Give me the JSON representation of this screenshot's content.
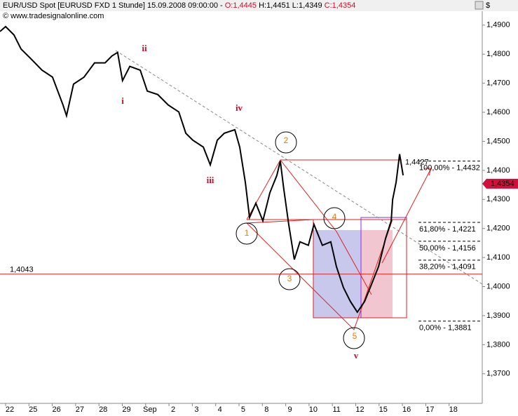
{
  "chart_data": {
    "type": "line",
    "title": "EUR/USD Spot [EURUSD FXD  1 Stunde] 15.09.2008 09:00:00 -",
    "ohlc": {
      "open": "O:1,4445",
      "high": "H:1,4451",
      "low": "L:1,4349",
      "close": "C:1,4354"
    },
    "source": "© www.tradesignalonline.com",
    "currency": "$",
    "xlim": [
      -0.42,
      20.24
    ],
    "ylim": [
      1.3598,
      1.4943
    ],
    "xticks": [
      {
        "value": 0,
        "label": "22"
      },
      {
        "value": 1,
        "label": "25"
      },
      {
        "value": 2,
        "label": "26"
      },
      {
        "value": 3,
        "label": "27"
      },
      {
        "value": 4,
        "label": "28"
      },
      {
        "value": 5,
        "label": "29"
      },
      {
        "value": 6,
        "label": "Sep"
      },
      {
        "value": 7,
        "label": "2"
      },
      {
        "value": 8,
        "label": "3"
      },
      {
        "value": 9,
        "label": "4"
      },
      {
        "value": 10,
        "label": "5"
      },
      {
        "value": 11,
        "label": "8"
      },
      {
        "value": 12,
        "label": "9"
      },
      {
        "value": 13,
        "label": "10"
      },
      {
        "value": 14,
        "label": "11"
      },
      {
        "value": 15,
        "label": "12"
      },
      {
        "value": 16,
        "label": "15"
      },
      {
        "value": 17,
        "label": "16"
      },
      {
        "value": 18,
        "label": "17"
      },
      {
        "value": 19,
        "label": "18"
      }
    ],
    "yticks": [
      {
        "value": 1.37,
        "label": "1,3700"
      },
      {
        "value": 1.38,
        "label": "1,3800"
      },
      {
        "value": 1.39,
        "label": "1,3900"
      },
      {
        "value": 1.4,
        "label": "1,4000"
      },
      {
        "value": 1.41,
        "label": "1,4100"
      },
      {
        "value": 1.42,
        "label": "1,4200"
      },
      {
        "value": 1.43,
        "label": "1,4300"
      },
      {
        "value": 1.44,
        "label": "1,4400"
      },
      {
        "value": 1.45,
        "label": "1,4500"
      },
      {
        "value": 1.46,
        "label": "1,4600"
      },
      {
        "value": 1.47,
        "label": "1,4700"
      },
      {
        "value": 1.48,
        "label": "1,4800"
      },
      {
        "value": 1.49,
        "label": "1,4900"
      }
    ],
    "series": [
      {
        "name": "EUR/USD",
        "color": "#000000",
        "x": [
          -0.42,
          -0.18,
          0.18,
          0.48,
          0.93,
          1.38,
          1.83,
          2.28,
          2.43,
          2.73,
          3.18,
          3.63,
          4.08,
          4.38,
          4.62,
          4.83,
          5.14,
          5.59,
          5.89,
          6.34,
          6.79,
          7.24,
          7.54,
          7.84,
          8.29,
          8.59,
          8.89,
          9.19,
          9.64,
          9.85,
          10.09,
          10.27,
          10.54,
          10.84,
          11.14,
          11.44,
          11.59,
          11.74,
          11.95,
          12.19,
          12.43,
          12.79,
          13.03,
          13.39,
          13.75,
          13.99,
          14.29,
          14.59,
          14.89,
          15.2,
          15.5,
          15.8,
          16.1,
          16.34,
          16.4,
          16.55,
          16.7,
          16.85
        ],
        "values": [
          1.4878,
          1.4895,
          1.4866,
          1.4818,
          1.4782,
          1.4745,
          1.4721,
          1.4625,
          1.4588,
          1.4697,
          1.4721,
          1.477,
          1.477,
          1.4794,
          1.4806,
          1.4709,
          1.4758,
          1.4745,
          1.4673,
          1.4661,
          1.4625,
          1.4601,
          1.4528,
          1.4504,
          1.448,
          1.4419,
          1.4504,
          1.4528,
          1.454,
          1.448,
          1.4359,
          1.4238,
          1.4287,
          1.4226,
          1.4323,
          1.4383,
          1.4432,
          1.4335,
          1.4214,
          1.4093,
          1.4154,
          1.4142,
          1.4214,
          1.4142,
          1.4154,
          1.4069,
          1.3997,
          1.3949,
          1.3912,
          1.3949,
          1.4009,
          1.4069,
          1.4166,
          1.4226,
          1.4299,
          1.4359,
          1.4456,
          1.4383
        ]
      }
    ],
    "hline": {
      "value": 1.4043,
      "label": "1,4043"
    },
    "last_price": {
      "value": 1.4354,
      "label": "1,4354"
    },
    "peak_label": {
      "value": 1.4427,
      "label": "1,4427"
    },
    "fibonacci": [
      {
        "value": 1.4432,
        "label": "100,00% - 1,4432"
      },
      {
        "value": 1.4221,
        "label": "61,80% - 1,4221"
      },
      {
        "value": 1.4156,
        "label": "50,00% - 1,4156"
      },
      {
        "value": 1.4091,
        "label": "38,20% - 1,4091"
      },
      {
        "value": 1.3881,
        "label": "0,00% - 1,3881"
      }
    ],
    "waves": [
      "1",
      "2",
      "3",
      "4",
      "5"
    ],
    "roman_waves": [
      "i",
      "ii",
      "iii",
      "iv",
      "v"
    ]
  }
}
